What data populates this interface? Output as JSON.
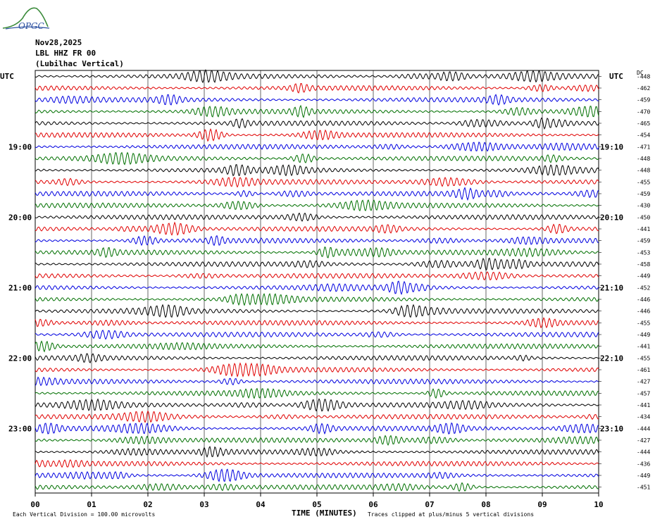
{
  "header": {
    "date": "Nov28,2025",
    "station": "LBL HHZ FR 00",
    "location": "(Lubilhac Vertical)",
    "logo_text": "OPGC"
  },
  "axis_labels": {
    "utc_left": "UTC",
    "utc_right": "UTC",
    "dc": "DC",
    "xlabel": "TIME (MINUTES)"
  },
  "footer": {
    "scale_note": "Each Vertical Division =  100.00 microvolts",
    "clip_note": "Traces clipped at plus/minus 5 vertical divisions"
  },
  "chart_data": {
    "type": "line",
    "subtype": "seismogram-helicorder",
    "x_ticks": [
      "00",
      "01",
      "02",
      "03",
      "04",
      "05",
      "06",
      "07",
      "08",
      "09",
      "10"
    ],
    "xlim": [
      0,
      10
    ],
    "left_time_labels": [
      {
        "row": 6,
        "text": "19:00"
      },
      {
        "row": 12,
        "text": "20:00"
      },
      {
        "row": 18,
        "text": "21:00"
      },
      {
        "row": 24,
        "text": "22:00"
      },
      {
        "row": 30,
        "text": "23:00"
      }
    ],
    "right_time_labels": [
      {
        "row": 6,
        "text": "19:10"
      },
      {
        "row": 12,
        "text": "20:10"
      },
      {
        "row": 18,
        "text": "21:10"
      },
      {
        "row": 24,
        "text": "22:10"
      },
      {
        "row": 30,
        "text": "23:10"
      }
    ],
    "dc_offsets": [
      -448,
      -462,
      -459,
      -470,
      -465,
      -454,
      -471,
      -448,
      -448,
      -455,
      -459,
      -430,
      -450,
      -441,
      -459,
      -453,
      -458,
      -449,
      -452,
      -446,
      -446,
      -455,
      -449,
      -441,
      -455,
      -461,
      -427,
      -457,
      -441,
      -434,
      -444,
      -427,
      -444,
      -436,
      -449,
      -451
    ],
    "trace_colors": [
      "#000000",
      "#e00000",
      "#0000e0",
      "#007000"
    ],
    "grid": true
  }
}
